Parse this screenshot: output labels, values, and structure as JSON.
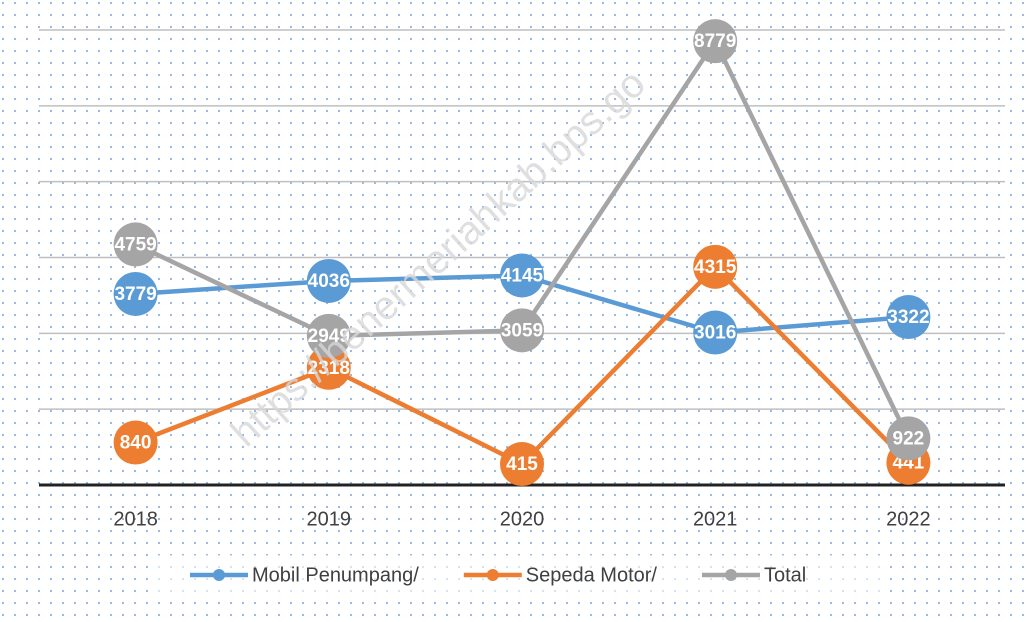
{
  "chart_data": {
    "type": "line",
    "categories": [
      "2018",
      "2019",
      "2020",
      "2021",
      "2022"
    ],
    "series": [
      {
        "name": "Mobil Penumpang/",
        "color": "#5b9bd5",
        "values": [
          3779,
          4036,
          4145,
          3016,
          3322
        ]
      },
      {
        "name": "Sepeda Motor/",
        "color": "#ed7d31",
        "values": [
          840,
          2318,
          415,
          4315,
          441
        ]
      },
      {
        "name": "Total",
        "color": "#a5a5a5",
        "values": [
          4759,
          2949,
          3059,
          8779,
          922
        ]
      }
    ],
    "ylim": [
      0,
      9000
    ],
    "yticks": [
      0,
      1500,
      3000,
      4500,
      6000,
      7500,
      9000
    ],
    "grid": true,
    "legend": "bottom",
    "watermark": "https://benermeriahkab.bps.go"
  }
}
